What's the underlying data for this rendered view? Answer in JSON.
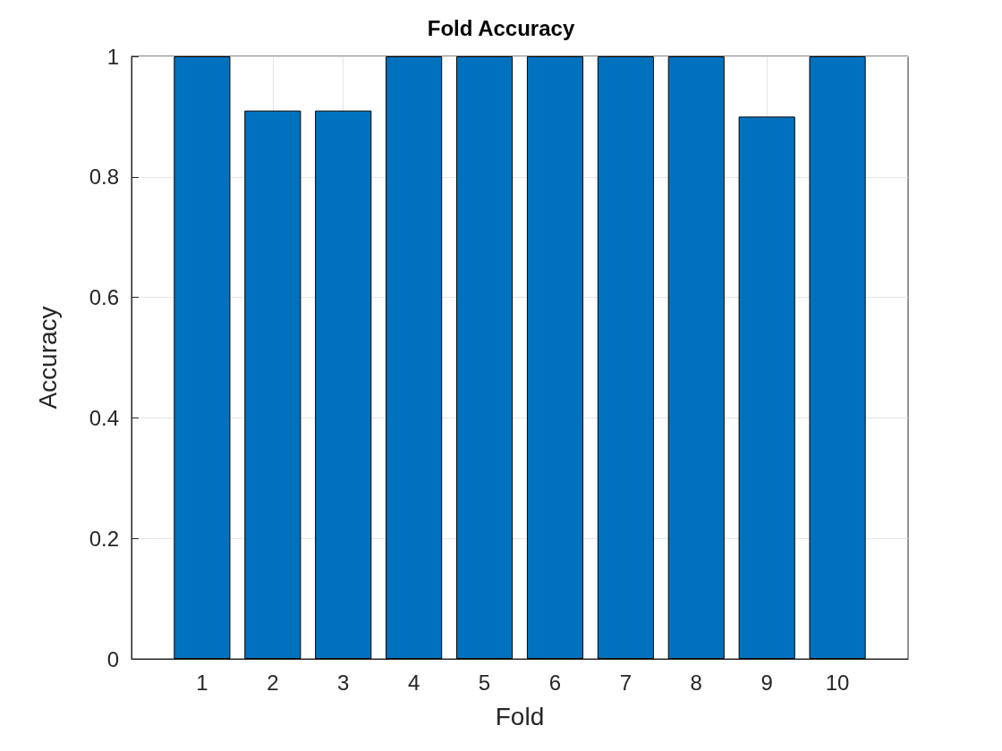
{
  "chart_data": {
    "type": "bar",
    "title": "Fold Accuracy",
    "xlabel": "Fold",
    "ylabel": "Accuracy",
    "x": [
      1,
      2,
      3,
      4,
      5,
      6,
      7,
      8,
      9,
      10
    ],
    "values": [
      1,
      0.91,
      0.91,
      1,
      1,
      1,
      1,
      1,
      0.9,
      1
    ],
    "color": "#0072bd",
    "xlim": [
      0,
      11
    ],
    "xticks": [
      1,
      2,
      3,
      4,
      5,
      6,
      7,
      8,
      9,
      10
    ],
    "ylim": [
      0,
      1
    ],
    "yticks": [
      0,
      0.2,
      0.4,
      0.6,
      0.8,
      1
    ],
    "grid": true
  }
}
